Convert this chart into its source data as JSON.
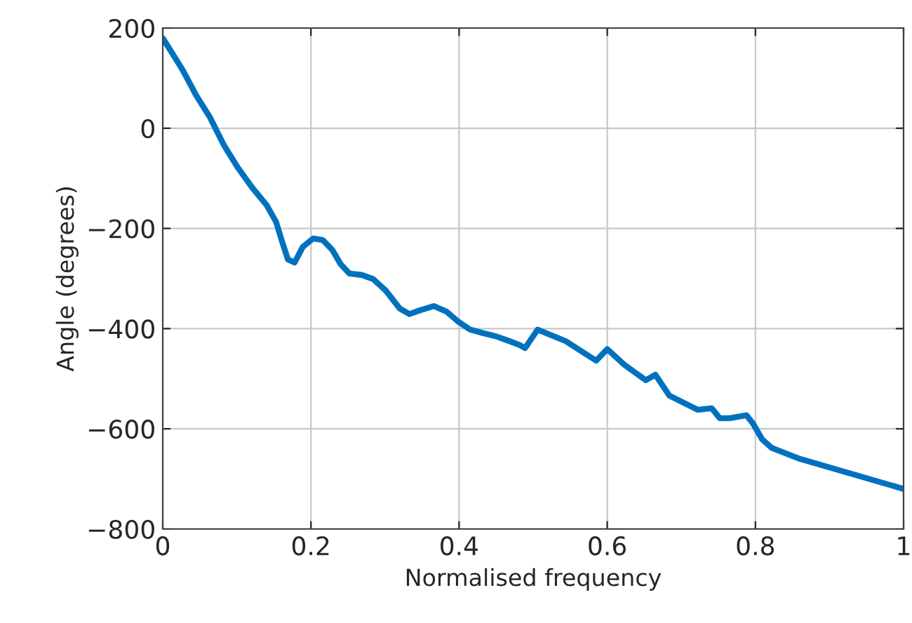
{
  "chart_data": {
    "type": "line",
    "xlabel": "Normalised frequency",
    "ylabel": "Angle (degrees)",
    "xlim": [
      0,
      1
    ],
    "ylim": [
      -800,
      200
    ],
    "xticks": [
      0,
      0.2,
      0.4,
      0.6,
      0.8,
      1
    ],
    "yticks": [
      -800,
      -600,
      -400,
      -200,
      0,
      200
    ],
    "grid": true,
    "marker": "none",
    "line_style": "solid",
    "series": [
      {
        "color": "#0072bd",
        "x": [
          0,
          0.027,
          0.045,
          0.064,
          0.083,
          0.102,
          0.121,
          0.14,
          0.153,
          0.161,
          0.169,
          0.178,
          0.189,
          0.203,
          0.216,
          0.229,
          0.24,
          0.252,
          0.269,
          0.284,
          0.301,
          0.32,
          0.333,
          0.348,
          0.366,
          0.383,
          0.398,
          0.415,
          0.43,
          0.451,
          0.468,
          0.482,
          0.489,
          0.506,
          0.544,
          0.585,
          0.6,
          0.623,
          0.652,
          0.665,
          0.684,
          0.722,
          0.741,
          0.752,
          0.765,
          0.788,
          0.797,
          0.809,
          0.822,
          0.86,
          1
        ],
        "values": [
          180,
          116,
          66,
          21,
          -35,
          -80,
          -119,
          -153,
          -187,
          -226,
          -262,
          -268,
          -237,
          -220,
          -223,
          -243,
          -271,
          -290,
          -293,
          -301,
          -324,
          -360,
          -371,
          -363,
          -355,
          -366,
          -385,
          -402,
          -408,
          -416,
          -425,
          -433,
          -439,
          -402,
          -425,
          -464,
          -441,
          -472,
          -503,
          -492,
          -534,
          -562,
          -559,
          -579,
          -579,
          -573,
          -590,
          -621,
          -638,
          -660,
          -720
        ]
      }
    ]
  }
}
